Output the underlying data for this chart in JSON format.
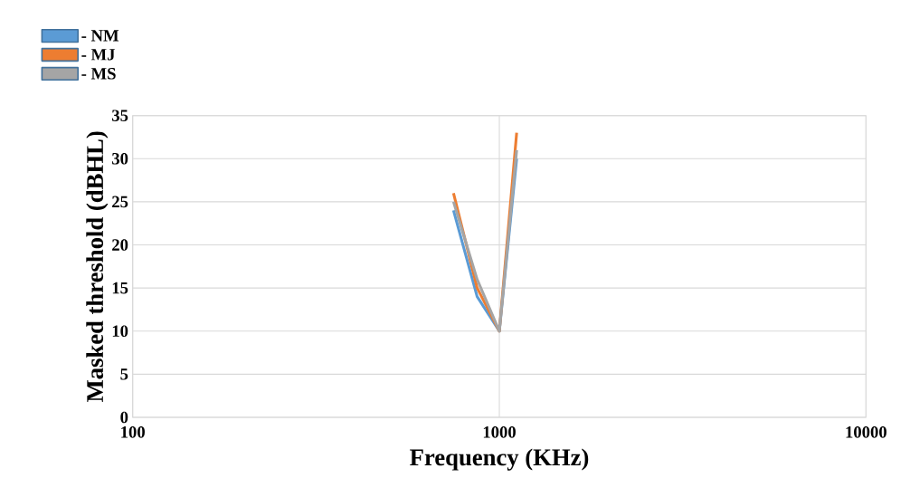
{
  "chart_data": {
    "type": "line",
    "xlabel": "Frequency (KHz)",
    "ylabel": "Masked threshold (dBHL)",
    "log": "x",
    "xlim": [
      100,
      10000
    ],
    "xticks": [
      100,
      1000,
      10000
    ],
    "ylim": [
      0,
      35
    ],
    "yticks": [
      0,
      5,
      10,
      15,
      20,
      25,
      30,
      35
    ],
    "grid": true,
    "legend": "top left",
    "x": [
      750,
      870,
      1000,
      1115
    ],
    "series": [
      {
        "name": "- NM",
        "color": "#5b9bd5",
        "values": [
          24,
          14,
          10,
          30
        ]
      },
      {
        "name": "- MJ",
        "color": "#ed7d31",
        "values": [
          26,
          15,
          10,
          33
        ]
      },
      {
        "name": "- MS",
        "color": "#a5a5a5",
        "values": [
          25,
          16,
          10,
          31
        ]
      }
    ]
  }
}
